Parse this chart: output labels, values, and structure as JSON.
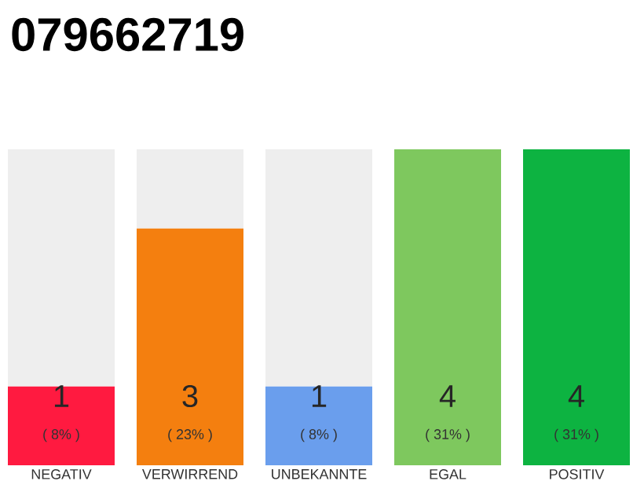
{
  "chart_data": {
    "type": "bar",
    "stacked": true,
    "title": "079662719",
    "categories": [
      "NEGATIV",
      "VERWIRREND",
      "UNBEKANNTE",
      "EGAL",
      "POSITIV"
    ],
    "series": [
      {
        "colors": [
          "#ff1a40",
          "#f47f0f",
          "#6a9eed",
          "#7ec85e",
          "#0db341"
        ],
        "values": [
          1,
          3,
          1,
          4,
          4
        ],
        "value_labels": [
          "1",
          "3",
          "1",
          "4",
          "4"
        ]
      },
      {
        "color": "#eeeeee",
        "values": [
          3,
          1,
          3,
          0,
          0
        ]
      }
    ],
    "annotations": [
      "( 8% )",
      "( 23% )",
      "( 8% )",
      "( 31% )",
      "( 31% )"
    ]
  }
}
